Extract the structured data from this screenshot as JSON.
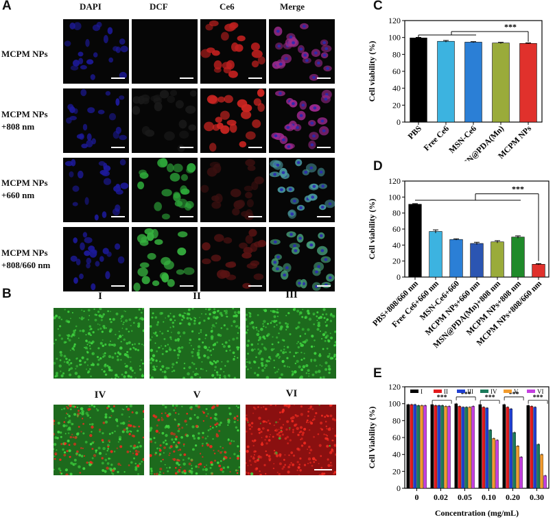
{
  "panels": {
    "a": {
      "letter": "A",
      "columns": [
        "DAPI",
        "DCF",
        "Ce6",
        "Merge"
      ],
      "rows": [
        {
          "label": "MCPM NPs"
        },
        {
          "label": "MCPM NPs\n+808 nm"
        },
        {
          "label": "MCPM NPs\n+660 nm"
        },
        {
          "label": "MCPM NPs\n+808/660 nm"
        }
      ]
    },
    "b": {
      "letter": "B",
      "groups": [
        "I",
        "II",
        "III",
        "IV",
        "V",
        "VI"
      ]
    },
    "c": {
      "letter": "C"
    },
    "d": {
      "letter": "D"
    },
    "e": {
      "letter": "E"
    }
  },
  "colors": {
    "black": "#000000",
    "cyan": "#3cb3e0",
    "blue": "#2b7fd6",
    "darkblue": "#2b55b2",
    "olive": "#9aab3a",
    "green": "#1f8a2a",
    "red": "#e0312c",
    "e_red": "#e31a1c",
    "e_blue": "#1f3fd1",
    "e_teal": "#1a7a5a",
    "e_orange": "#f29b2c",
    "e_purple": "#c43fe0"
  },
  "chart_data": [
    {
      "id": "C",
      "type": "bar",
      "title": "",
      "xlabel": "",
      "ylabel": "Cell viability (%)",
      "ylim": [
        0,
        120
      ],
      "yticks": [
        0,
        20,
        40,
        60,
        80,
        100,
        120
      ],
      "categories": [
        "PBS",
        "Free Ce6",
        "MSN-Ce6",
        "MSN@PDA(Mn)",
        "MCPM NPs"
      ],
      "values": [
        99.5,
        95.5,
        94.5,
        93.5,
        93
      ],
      "errors": [
        0.6,
        1.0,
        0.6,
        0.8,
        0.6
      ],
      "bar_colors": [
        "#000000",
        "#3cb3e0",
        "#2b7fd6",
        "#9aab3a",
        "#e0312c"
      ],
      "significance": "***"
    },
    {
      "id": "D",
      "type": "bar",
      "title": "",
      "xlabel": "",
      "ylabel": "Cell viability (%)",
      "ylim": [
        0,
        120
      ],
      "yticks": [
        0,
        20,
        40,
        60,
        80,
        100,
        120
      ],
      "categories": [
        "PBS+808/660 nm",
        "Free Ce6+660 nm",
        "MSN-Ce6+660",
        "MCPM NPs+660 nm",
        "MSN@PDA(Mn)+808 nm",
        "MCPM NPs+808 nm",
        "MCPM NPs+808/660 nm"
      ],
      "values": [
        91,
        57,
        47,
        42,
        44,
        50,
        16
      ],
      "errors": [
        0.8,
        2.0,
        0.8,
        1.5,
        1.5,
        1.5,
        0.8
      ],
      "bar_colors": [
        "#000000",
        "#3cb3e0",
        "#2b7fd6",
        "#2b55b2",
        "#9aab3a",
        "#1f8a2a",
        "#e0312c"
      ],
      "significance": "***"
    },
    {
      "id": "E",
      "type": "bar",
      "title": "",
      "xlabel": "Concentration (mg/mL)",
      "ylabel": "Cell Viability (%)",
      "ylim": [
        0,
        120
      ],
      "yticks": [
        0,
        20,
        40,
        60,
        80,
        100,
        120
      ],
      "categories": [
        "0",
        "0.02",
        "0.05",
        "0.10",
        "0.20",
        "0.30"
      ],
      "series": [
        {
          "name": "I",
          "color": "#000000",
          "values": [
            99,
            99,
            100,
            99,
            99,
            98
          ]
        },
        {
          "name": "II",
          "color": "#e31a1c",
          "values": [
            99,
            98,
            97,
            96,
            96,
            97
          ]
        },
        {
          "name": "III",
          "color": "#1f3fd1",
          "values": [
            99,
            98,
            96,
            95,
            94,
            96
          ]
        },
        {
          "name": "IV",
          "color": "#1a7a5a",
          "values": [
            98,
            98,
            96,
            69,
            66,
            52
          ]
        },
        {
          "name": "V",
          "color": "#f29b2c",
          "values": [
            98,
            97,
            96,
            59,
            50,
            40
          ]
        },
        {
          "name": "VI",
          "color": "#c43fe0",
          "values": [
            98,
            97,
            97,
            57,
            37,
            15
          ]
        }
      ],
      "significance": [
        "***",
        "***",
        "***",
        "***",
        "***",
        "**"
      ]
    }
  ]
}
